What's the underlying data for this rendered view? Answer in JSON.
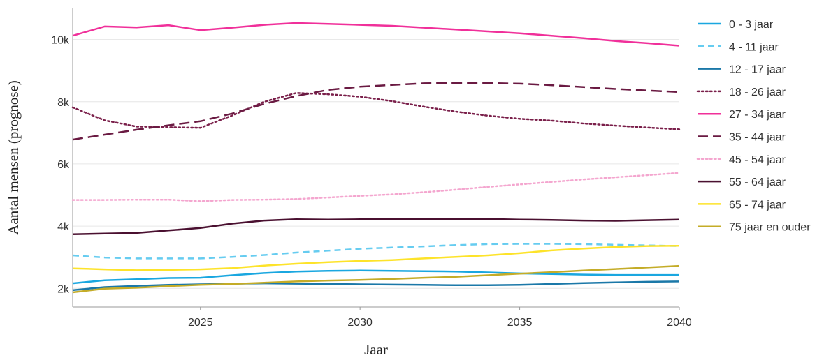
{
  "chart_data": {
    "type": "line",
    "xlabel": "Jaar",
    "ylabel": "Aantal mensen (prognose)",
    "xlim": [
      2021,
      2040
    ],
    "ylim": [
      1400,
      11000
    ],
    "xticks": [
      2025,
      2030,
      2035,
      2040
    ],
    "yticks": [
      2000,
      4000,
      6000,
      8000,
      10000
    ],
    "ytick_labels": [
      "2k",
      "4k",
      "6k",
      "8k",
      "10k"
    ],
    "grid": "horizontal",
    "legend": "right",
    "x": [
      2021,
      2022,
      2023,
      2024,
      2025,
      2026,
      2027,
      2028,
      2029,
      2030,
      2031,
      2032,
      2033,
      2034,
      2035,
      2036,
      2037,
      2038,
      2039,
      2040
    ],
    "series": [
      {
        "name": "0 - 3 jaar",
        "color": "#1aa7e0",
        "dash": "solid",
        "values": [
          2160,
          2260,
          2290,
          2330,
          2340,
          2420,
          2490,
          2540,
          2560,
          2570,
          2560,
          2550,
          2540,
          2510,
          2480,
          2460,
          2440,
          2430,
          2430,
          2430
        ]
      },
      {
        "name": "4 - 11 jaar",
        "color": "#66ccf0",
        "dash": "dashed",
        "values": [
          3060,
          2990,
          2960,
          2960,
          2960,
          3010,
          3070,
          3150,
          3210,
          3270,
          3310,
          3350,
          3390,
          3420,
          3430,
          3430,
          3420,
          3400,
          3380,
          3360
        ]
      },
      {
        "name": "12 - 17 jaar",
        "color": "#1b78a8",
        "dash": "solid",
        "values": [
          1940,
          2040,
          2080,
          2110,
          2130,
          2150,
          2160,
          2150,
          2140,
          2130,
          2120,
          2110,
          2100,
          2100,
          2110,
          2140,
          2170,
          2190,
          2210,
          2220
        ]
      },
      {
        "name": "18 - 26 jaar",
        "color": "#7a1f4a",
        "dash": "dotted",
        "values": [
          7820,
          7400,
          7200,
          7180,
          7160,
          7560,
          8000,
          8280,
          8240,
          8160,
          8020,
          7840,
          7680,
          7550,
          7450,
          7390,
          7300,
          7230,
          7170,
          7110
        ]
      },
      {
        "name": "27 - 34 jaar",
        "color": "#f0309a",
        "dash": "solid",
        "values": [
          10120,
          10420,
          10390,
          10460,
          10300,
          10380,
          10470,
          10530,
          10500,
          10470,
          10440,
          10380,
          10320,
          10260,
          10200,
          10120,
          10040,
          9950,
          9880,
          9800
        ]
      },
      {
        "name": "35 - 44 jaar",
        "color": "#6a1a42",
        "dash": "longdash",
        "values": [
          6780,
          6940,
          7100,
          7240,
          7370,
          7620,
          7930,
          8180,
          8380,
          8480,
          8540,
          8590,
          8600,
          8600,
          8580,
          8530,
          8470,
          8410,
          8360,
          8310
        ]
      },
      {
        "name": "45 - 54 jaar",
        "color": "#f4a6cf",
        "dash": "dotted",
        "values": [
          4840,
          4840,
          4850,
          4850,
          4800,
          4840,
          4850,
          4870,
          4920,
          4970,
          5020,
          5090,
          5170,
          5260,
          5340,
          5420,
          5500,
          5570,
          5640,
          5710
        ]
      },
      {
        "name": "55 - 64 jaar",
        "color": "#4a1030",
        "dash": "solid",
        "values": [
          3740,
          3760,
          3780,
          3860,
          3940,
          4080,
          4180,
          4220,
          4210,
          4220,
          4220,
          4220,
          4230,
          4230,
          4210,
          4200,
          4180,
          4170,
          4190,
          4210
        ]
      },
      {
        "name": "65 - 74 jaar",
        "color": "#fde32a",
        "dash": "solid",
        "values": [
          2640,
          2610,
          2580,
          2590,
          2610,
          2650,
          2730,
          2790,
          2840,
          2880,
          2910,
          2960,
          3010,
          3060,
          3130,
          3220,
          3280,
          3330,
          3360,
          3370
        ]
      },
      {
        "name": "75 jaar en ouder",
        "color": "#c4ac28",
        "dash": "solid",
        "values": [
          1870,
          1990,
          2020,
          2070,
          2110,
          2140,
          2180,
          2220,
          2250,
          2270,
          2300,
          2340,
          2370,
          2420,
          2470,
          2520,
          2570,
          2620,
          2670,
          2720
        ]
      }
    ]
  }
}
